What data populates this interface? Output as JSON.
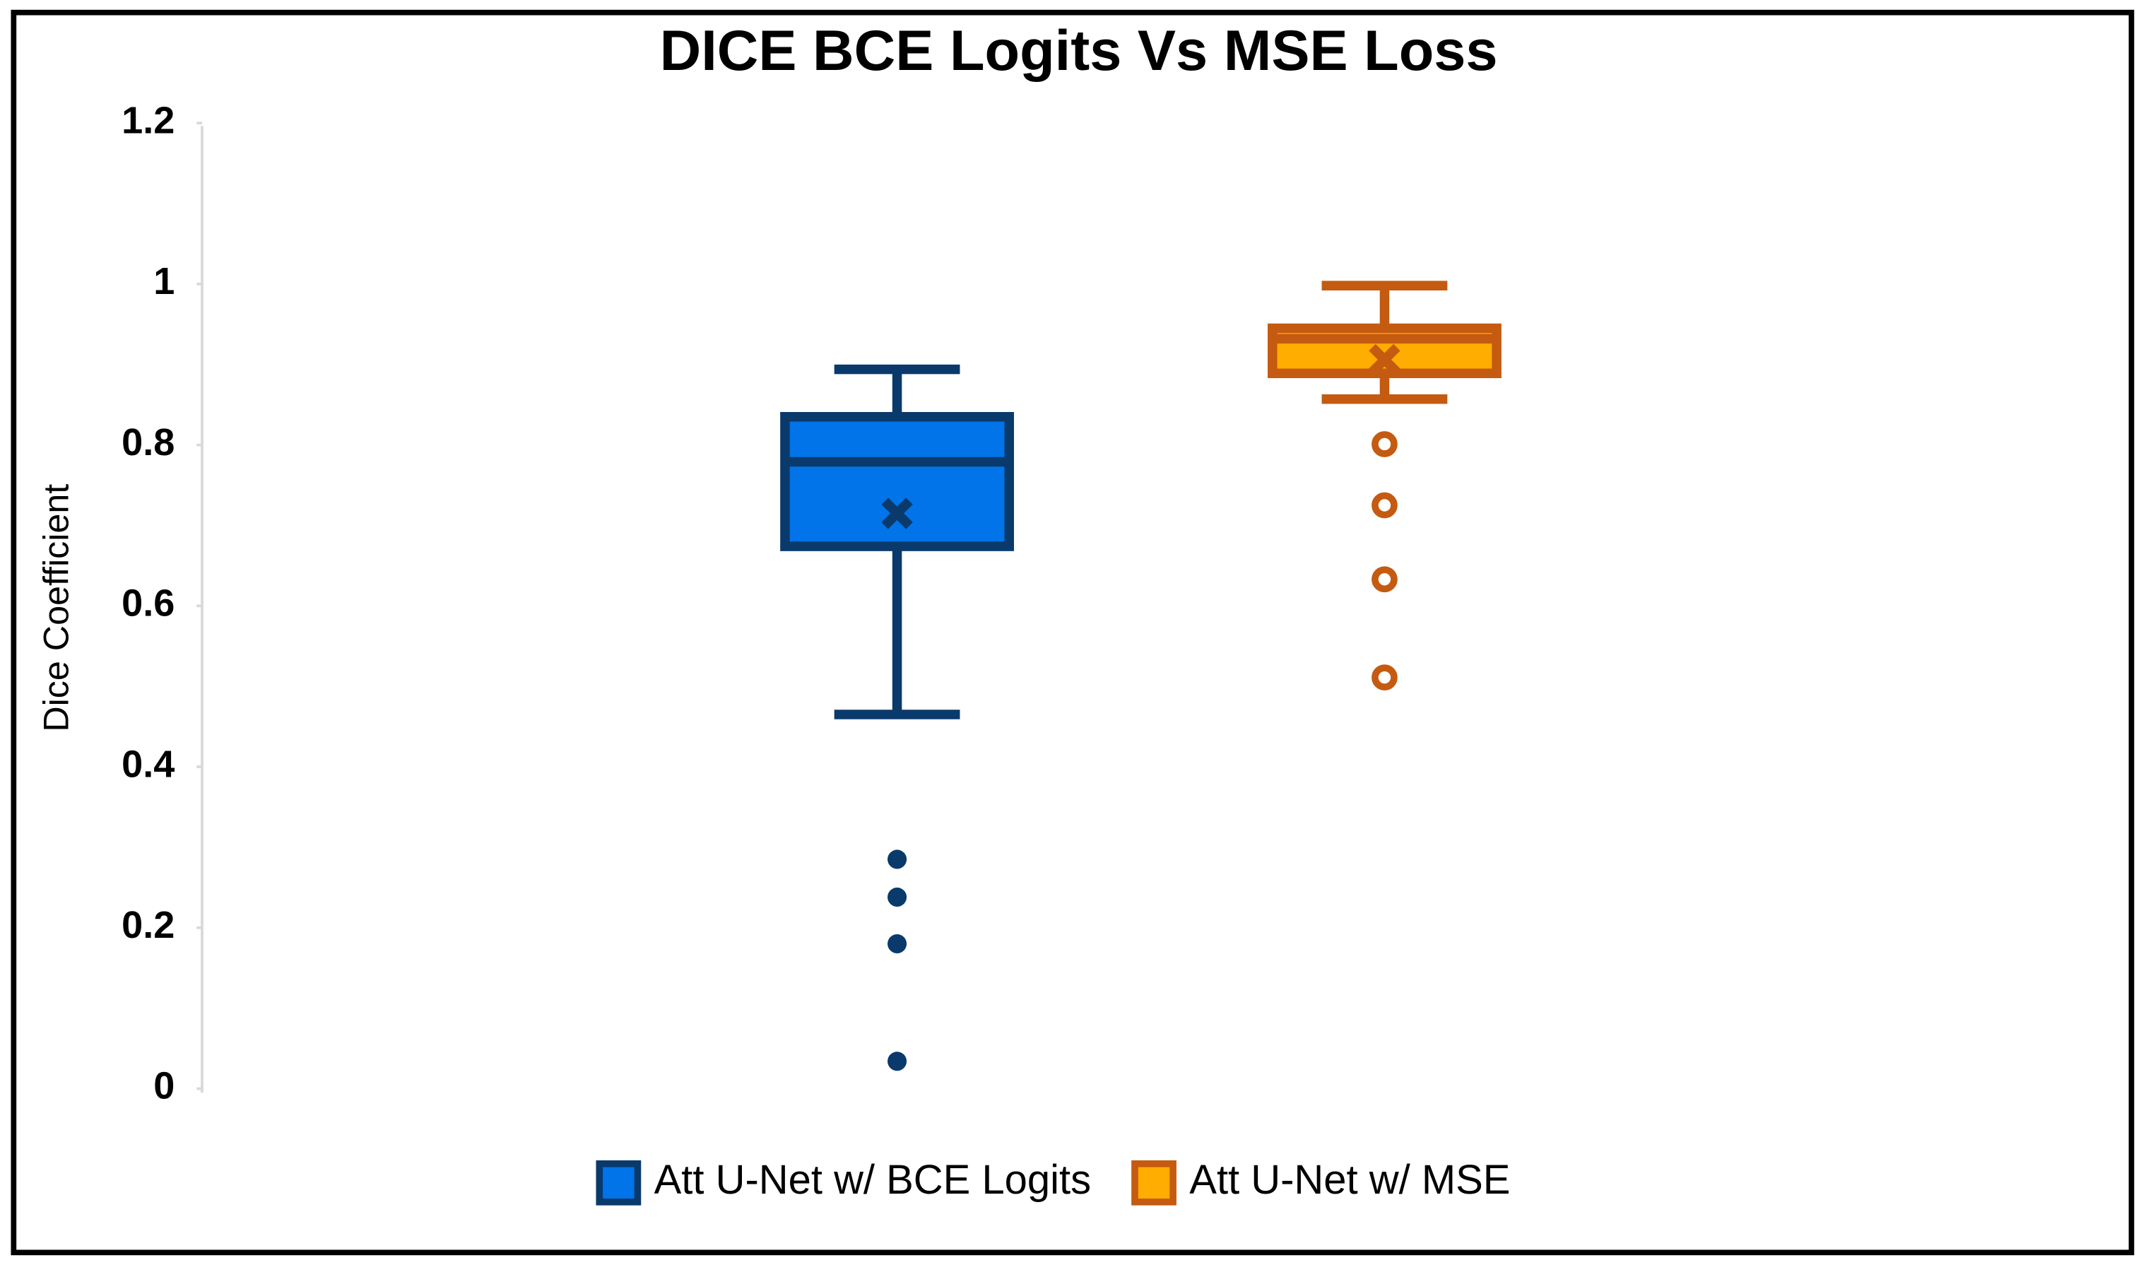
{
  "chart_data": {
    "type": "box",
    "title": "DICE BCE Logits Vs MSE Loss",
    "y_label": "Dice Coefficient",
    "ylim": [
      0,
      1.2
    ],
    "yticks": [
      0,
      0.2,
      0.4,
      0.6,
      0.8,
      1,
      1.2
    ],
    "legend": "bottom",
    "series": [
      {
        "name": "Att U-Net w/ BCE Logits",
        "color": "#0074e8",
        "edge_color": "#0a3a6b",
        "min": 0.465,
        "q1": 0.674,
        "median": 0.779,
        "q3": 0.835,
        "max": 0.894,
        "mean": 0.715,
        "outliers": [
          0.285,
          0.238,
          0.18,
          0.034
        ]
      },
      {
        "name": "Att U-Net w/ MSE",
        "color": "#ffad00",
        "edge_color": "#c55a11",
        "min": 0.857,
        "q1": 0.889,
        "median": 0.932,
        "q3": 0.945,
        "max": 0.998,
        "mean": 0.906,
        "outliers": [
          0.801,
          0.725,
          0.633,
          0.511
        ]
      }
    ]
  }
}
